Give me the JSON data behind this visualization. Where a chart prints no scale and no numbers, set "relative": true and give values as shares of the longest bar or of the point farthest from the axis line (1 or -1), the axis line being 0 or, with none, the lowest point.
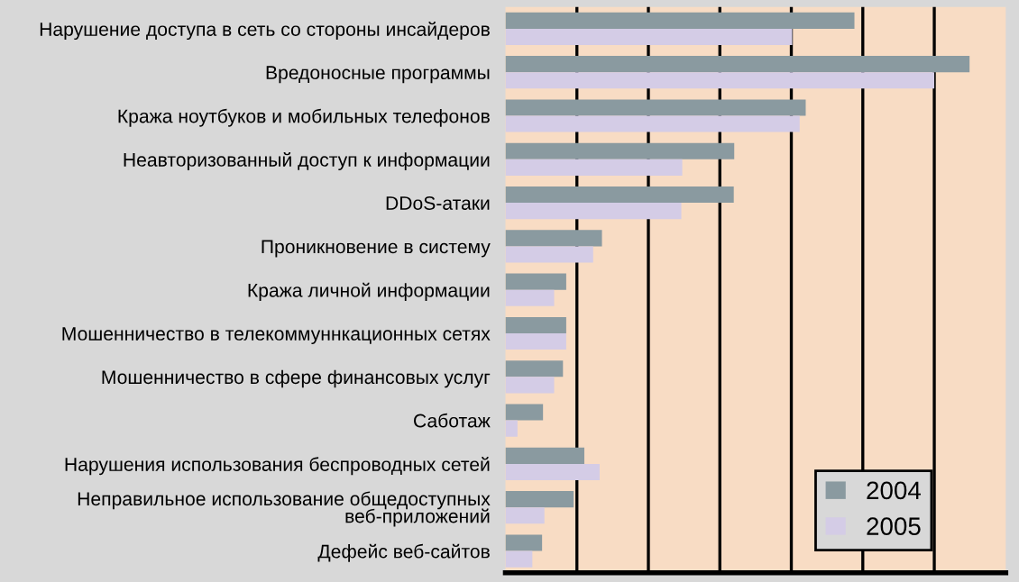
{
  "chart_data": {
    "type": "bar",
    "orientation": "horizontal",
    "relative": true,
    "grid": "x",
    "legend": "bottom right",
    "categories": [
      "Нарушение доступа в сеть со стороны инсайдеров",
      "Вредоносные программы",
      "Кража ноутбуков и мобильных телефонов",
      "Неавторизованный доступ к информации",
      "DDoS-атаки",
      "Проникновение в систему",
      "Кража личной информации",
      "Мошенничество в телекоммуннкационных сетях",
      "Мошенничество в сфере финансовых услуг",
      "Саботаж",
      "Нарушения использования беспроводных сетей",
      "Неправильное использование общедоступных\nвеб-приложений",
      "Дефейс веб-сайтов"
    ],
    "series": [
      {
        "name": "2004",
        "color": "#8a9aa0",
        "values": [
          0.752,
          1,
          0.647,
          0.493,
          0.492,
          0.208,
          0.131,
          0.131,
          0.124,
          0.081,
          0.17,
          0.147,
          0.079
        ]
      },
      {
        "name": "2005",
        "color": "#d4cce6",
        "values": [
          0.618,
          0.924,
          0.634,
          0.381,
          0.379,
          0.189,
          0.105,
          0.131,
          0.105,
          0.026,
          0.203,
          0.084,
          0.058
        ]
      }
    ]
  }
}
